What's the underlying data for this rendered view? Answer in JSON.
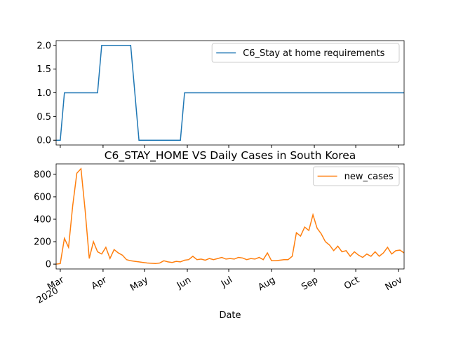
{
  "chart_data": [
    {
      "type": "line",
      "series": [
        {
          "name": "C6_Stay at home requirements",
          "color": "#1f77b4",
          "values": [
            0,
            0,
            1,
            1,
            1,
            1,
            1,
            1,
            1,
            1,
            1,
            2,
            2,
            2,
            2,
            2,
            2,
            2,
            2,
            1,
            0,
            0,
            0,
            0,
            0,
            0,
            0,
            0,
            0,
            0,
            0,
            1,
            1,
            1,
            1,
            1,
            1,
            1,
            1,
            1,
            1,
            1,
            1,
            1,
            1,
            1,
            1,
            1,
            1,
            1,
            1,
            1,
            1,
            1,
            1,
            1,
            1,
            1,
            1,
            1,
            1,
            1,
            1,
            1,
            1,
            1,
            1,
            1,
            1,
            1,
            1,
            1,
            1,
            1,
            1,
            1,
            1,
            1,
            1,
            1,
            1,
            1,
            1,
            1,
            1
          ]
        }
      ],
      "xlim": [
        0,
        84
      ],
      "xticks": [
        {
          "value": 1,
          "label": "Mar"
        },
        {
          "value": 11.33,
          "label": "Apr"
        },
        {
          "value": 21.33,
          "label": "May"
        },
        {
          "value": 31.67,
          "label": "Jun"
        },
        {
          "value": 41.67,
          "label": "Jul"
        },
        {
          "value": 52,
          "label": "Aug"
        },
        {
          "value": 62.33,
          "label": "Sep"
        },
        {
          "value": 72.33,
          "label": "Oct"
        },
        {
          "value": 82.67,
          "label": "Nov"
        }
      ],
      "ylim": [
        -0.1,
        2.1
      ],
      "yticks": [
        {
          "value": 0,
          "label": "0.0"
        },
        {
          "value": 0.5,
          "label": "0.5"
        },
        {
          "value": 1,
          "label": "1.0"
        },
        {
          "value": 1.5,
          "label": "1.5"
        },
        {
          "value": 2,
          "label": "2.0"
        }
      ],
      "legend": "upper right"
    },
    {
      "type": "line",
      "title": "C6_STAY_HOME VS Daily Cases in South Korea",
      "xlabel": "Date",
      "year_label": "2020",
      "series": [
        {
          "name": "new_cases",
          "color": "#ff7f0e",
          "values": [
            0,
            5,
            230,
            150,
            520,
            810,
            850,
            480,
            50,
            200,
            110,
            90,
            150,
            50,
            130,
            100,
            80,
            40,
            30,
            25,
            20,
            15,
            10,
            8,
            5,
            10,
            30,
            20,
            15,
            25,
            20,
            35,
            40,
            70,
            40,
            45,
            35,
            50,
            40,
            50,
            60,
            45,
            50,
            45,
            60,
            55,
            40,
            50,
            45,
            60,
            40,
            100,
            30,
            30,
            35,
            40,
            40,
            70,
            280,
            250,
            330,
            300,
            440,
            320,
            270,
            200,
            170,
            120,
            160,
            110,
            120,
            70,
            110,
            80,
            60,
            90,
            70,
            110,
            70,
            100,
            150,
            90,
            120,
            125,
            100
          ]
        }
      ],
      "xlim": [
        0,
        84
      ],
      "xticks": [
        {
          "value": 1,
          "label": "Mar"
        },
        {
          "value": 11.33,
          "label": "Apr"
        },
        {
          "value": 21.33,
          "label": "May"
        },
        {
          "value": 31.67,
          "label": "Jun"
        },
        {
          "value": 41.67,
          "label": "Jul"
        },
        {
          "value": 52,
          "label": "Aug"
        },
        {
          "value": 62.33,
          "label": "Sep"
        },
        {
          "value": 72.33,
          "label": "Oct"
        },
        {
          "value": 82.67,
          "label": "Nov"
        }
      ],
      "ylim": [
        -43,
        893
      ],
      "yticks": [
        0,
        200,
        400,
        600,
        800
      ],
      "legend": "upper right"
    }
  ]
}
